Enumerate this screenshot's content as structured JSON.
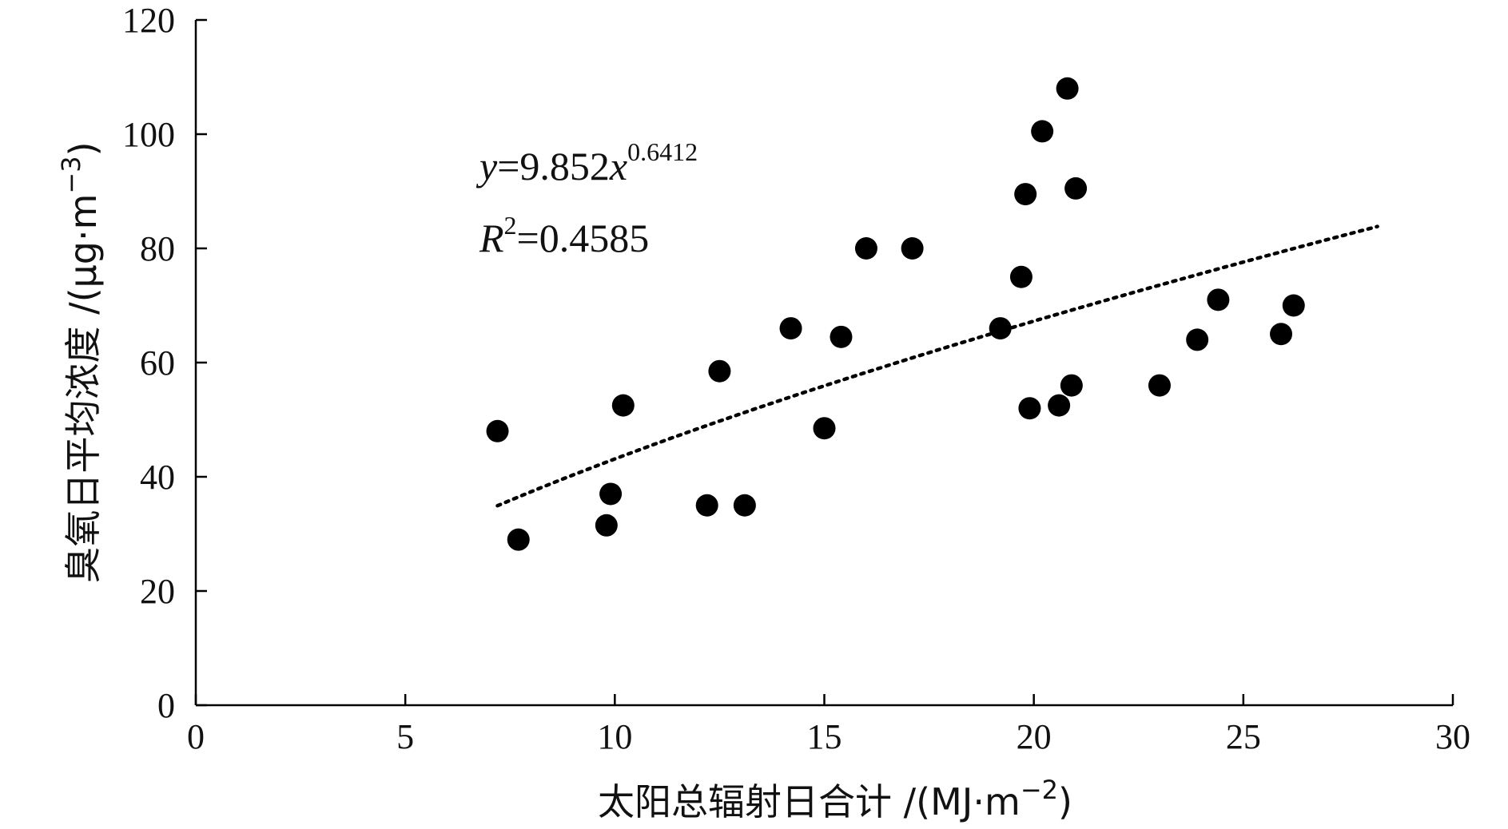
{
  "chart_data": {
    "type": "scatter",
    "title": "",
    "xlabel_main": "太阳总辐射日合计 /(MJ·m",
    "xlabel_sup": "−2",
    "xlabel_tail": ")",
    "ylabel_main": "臭氧日平均浓度 /(μg·m",
    "ylabel_sup": "−3",
    "ylabel_tail": ")",
    "xlim": [
      0,
      30
    ],
    "ylim": [
      0,
      120
    ],
    "xticks": [
      0,
      5,
      10,
      15,
      20,
      25,
      30
    ],
    "yticks": [
      0,
      20,
      40,
      60,
      80,
      100,
      120
    ],
    "grid": false,
    "points": [
      [
        7.2,
        48
      ],
      [
        7.7,
        29
      ],
      [
        9.8,
        31.5
      ],
      [
        9.9,
        37
      ],
      [
        10.2,
        52.5
      ],
      [
        12.2,
        35
      ],
      [
        12.5,
        58.5
      ],
      [
        13.1,
        35
      ],
      [
        14.2,
        66
      ],
      [
        15.0,
        48.5
      ],
      [
        15.4,
        64.5
      ],
      [
        16.0,
        80
      ],
      [
        17.1,
        80
      ],
      [
        19.2,
        66
      ],
      [
        19.7,
        75
      ],
      [
        19.8,
        89.5
      ],
      [
        19.9,
        52
      ],
      [
        20.2,
        100.5
      ],
      [
        20.6,
        52.5
      ],
      [
        20.8,
        108
      ],
      [
        20.9,
        56
      ],
      [
        21.0,
        90.5
      ],
      [
        23.0,
        56
      ],
      [
        23.9,
        64
      ],
      [
        24.4,
        71
      ],
      [
        25.9,
        65
      ],
      [
        26.2,
        70
      ]
    ],
    "trendline": {
      "type": "power",
      "coefficient": 9.852,
      "exponent": 0.6412,
      "x_range": [
        7.2,
        28.2
      ],
      "style": "dotted"
    },
    "equation": {
      "eq_var_y": "y",
      "eq_rhs": "=9.852",
      "eq_var_x": "x",
      "eq_exp": "0.6412",
      "r_var": "R",
      "r_sup": "2",
      "r_rhs": "=0.4585"
    },
    "marker_color": "#000000"
  }
}
